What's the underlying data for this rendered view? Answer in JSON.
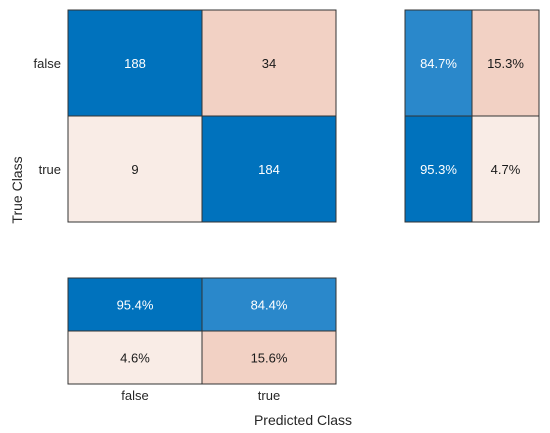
{
  "chart_data": {
    "type": "heatmap",
    "title": "",
    "xlabel": "Predicted Class",
    "ylabel": "True Class",
    "classes": [
      "false",
      "true"
    ],
    "matrix": [
      [
        188,
        34
      ],
      [
        9,
        184
      ]
    ],
    "row_summary": [
      [
        "84.7%",
        "15.3%"
      ],
      [
        "95.3%",
        "4.7%"
      ]
    ],
    "column_summary": [
      [
        "95.4%",
        "84.4%"
      ],
      [
        "4.6%",
        "15.6%"
      ]
    ],
    "colors": {
      "correct_dark": "#0072BD",
      "correct_mid": "#2A88CB",
      "incorrect_light": "#F9ECE6",
      "incorrect_mid": "#F5DDD2",
      "incorrect_dark": "#F2D1C4",
      "border": "#333333",
      "text_light": "#ffffff",
      "text_dark": "#1a1a1a"
    }
  }
}
